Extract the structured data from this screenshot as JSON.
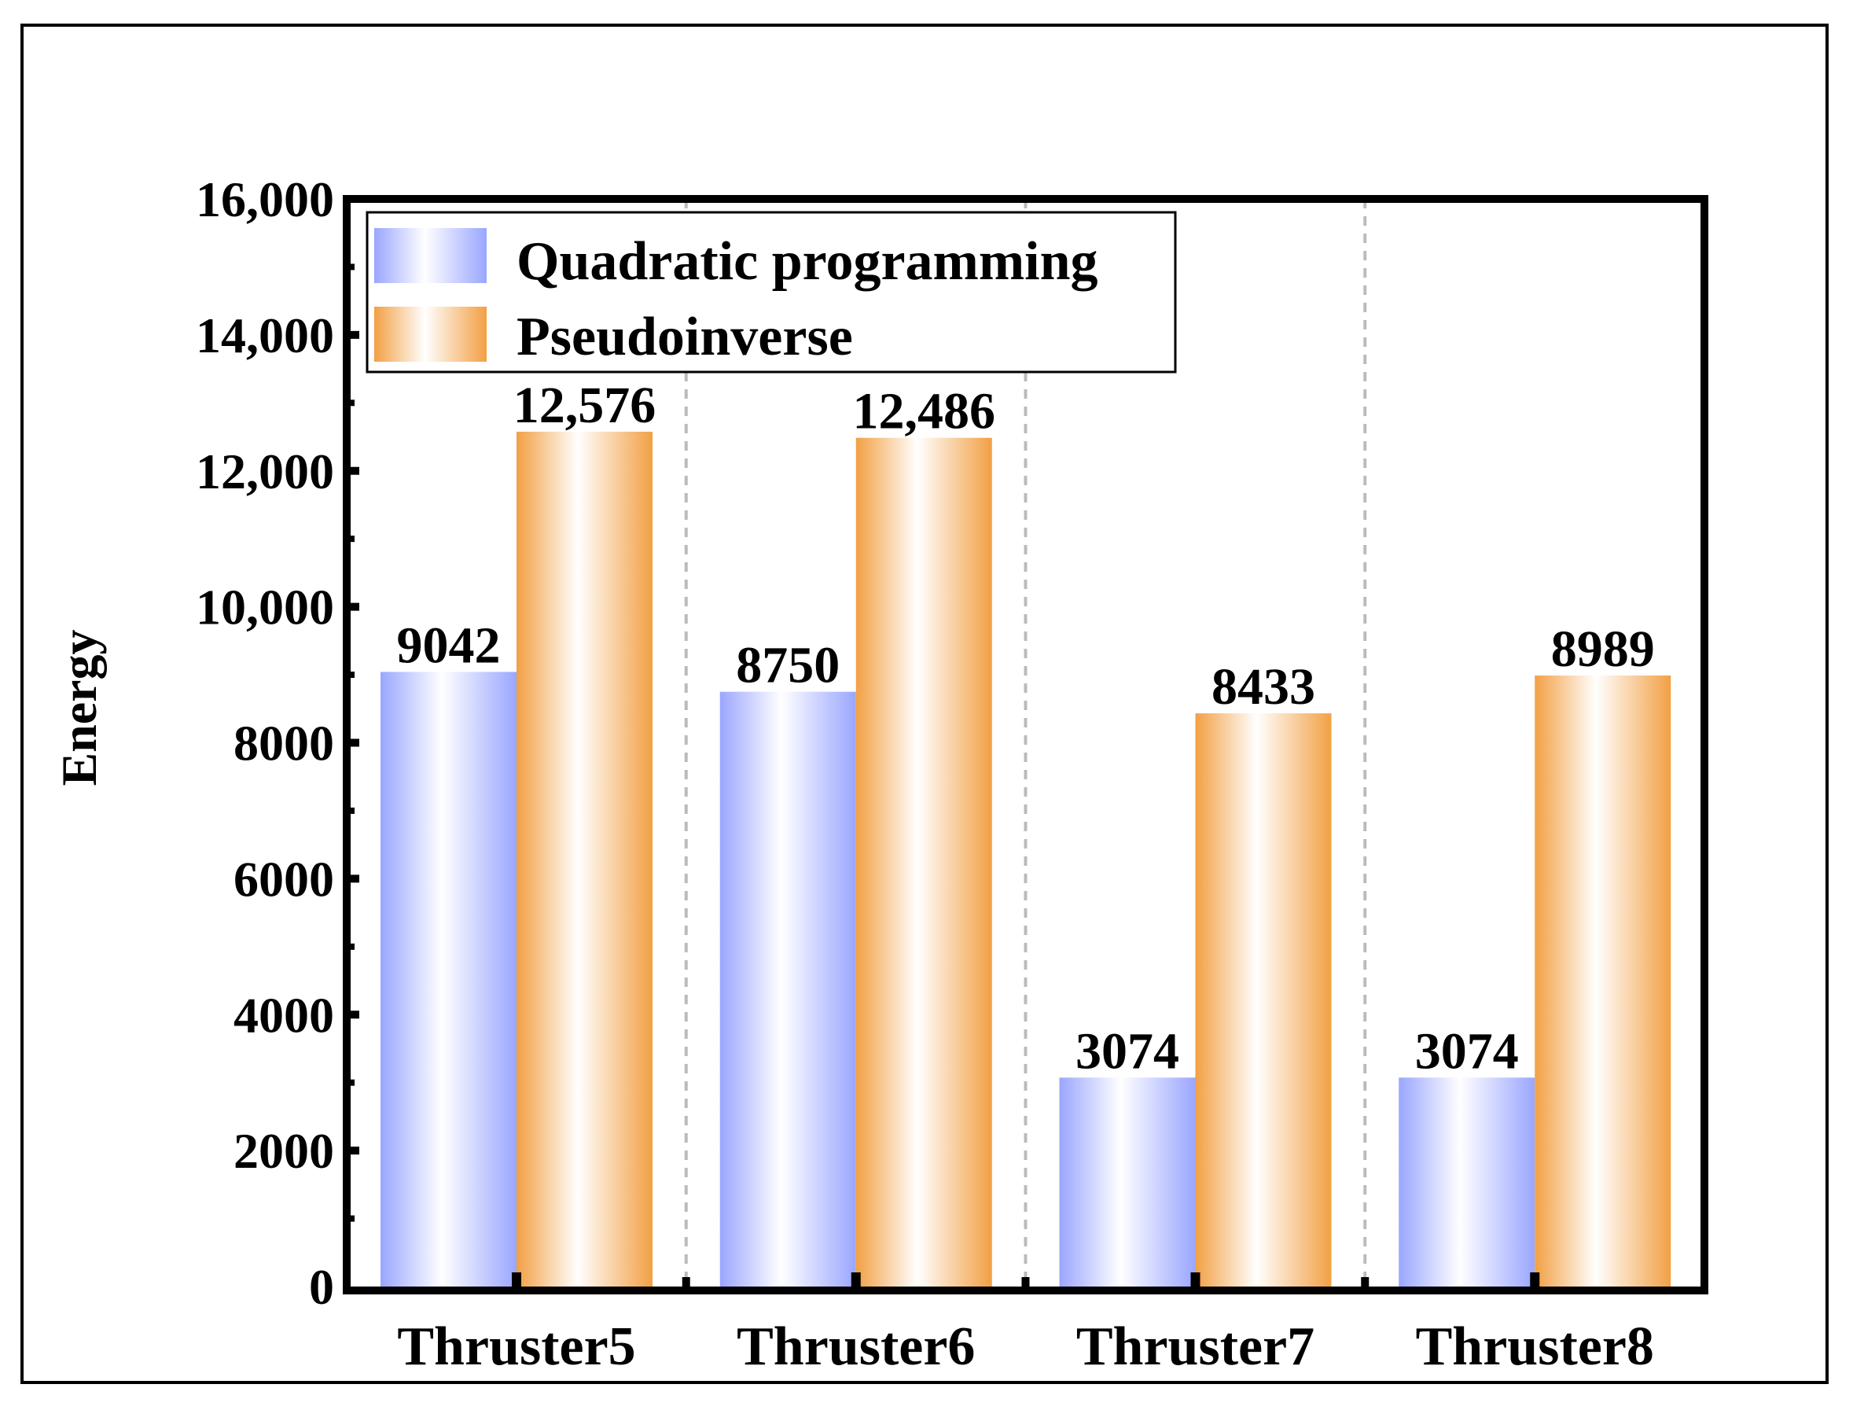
{
  "chart_data": {
    "type": "bar",
    "categories": [
      "Thruster5",
      "Thruster6",
      "Thruster7",
      "Thruster8"
    ],
    "series": [
      {
        "name": "Quadratic programming",
        "values": [
          9042,
          8750,
          3074,
          3074
        ],
        "labels": [
          "9042",
          "8750",
          "3074",
          "3074"
        ],
        "color": "#9aa6ff"
      },
      {
        "name": "Pseudoinverse",
        "values": [
          12576,
          12486,
          8433,
          8989
        ],
        "labels": [
          "12,576",
          "12,486",
          "8433",
          "8989"
        ],
        "color": "#f2a044"
      }
    ],
    "ylabel": "Energy",
    "ylim": [
      0,
      16000
    ],
    "yticks": [
      0,
      2000,
      4000,
      6000,
      8000,
      10000,
      12000,
      14000,
      16000
    ],
    "ytick_labels": [
      "0",
      "2000",
      "4000",
      "6000",
      "8000",
      "10,000",
      "12,000",
      "14,000",
      "16,000"
    ],
    "legend_position": "top-left",
    "grid": "vertical dashed separators between categories"
  }
}
